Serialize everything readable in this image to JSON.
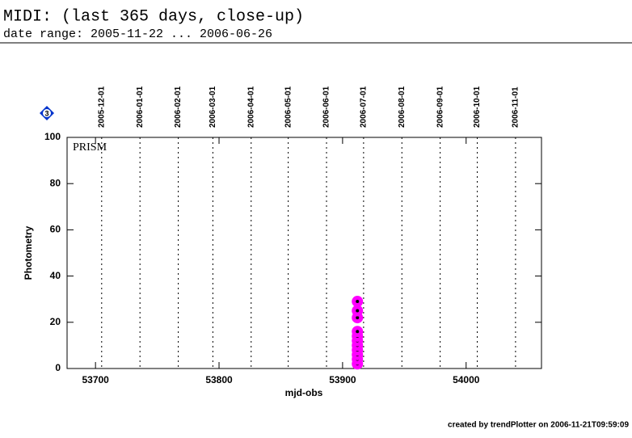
{
  "chart_data": {
    "type": "scatter",
    "title": "MIDI: (last 365 days, close-up)",
    "subtitle": "date range: 2005-11-22 ... 2006-06-26",
    "badge": "3",
    "xlabel": "mjd-obs",
    "ylabel": "Photometry",
    "footer": "created by trendPlotter on 2006-11-21T09:59:09",
    "xlim": [
      53677,
      54061
    ],
    "ylim": [
      0,
      100
    ],
    "xticks": [
      53700,
      53800,
      53900,
      54000
    ],
    "yticks": [
      0,
      20,
      40,
      60,
      80,
      100
    ],
    "date_lines": [
      {
        "value": 53705,
        "label": "2005-12-01"
      },
      {
        "value": 53736,
        "label": "2006-01-01"
      },
      {
        "value": 53767,
        "label": "2006-02-01"
      },
      {
        "value": 53795,
        "label": "2006-03-01"
      },
      {
        "value": 53826,
        "label": "2006-04-01"
      },
      {
        "value": 53856,
        "label": "2006-05-01"
      },
      {
        "value": 53887,
        "label": "2006-06-01"
      },
      {
        "value": 53917,
        "label": "2006-07-01"
      },
      {
        "value": 53948,
        "label": "2006-08-01"
      },
      {
        "value": 53979,
        "label": "2006-09-01"
      },
      {
        "value": 54009,
        "label": "2006-10-01"
      },
      {
        "value": 54040,
        "label": "2006-11-01"
      }
    ],
    "series": [
      {
        "name": "PRISM",
        "color": "#ff00ff",
        "x": [
          53912,
          53912,
          53912,
          53912,
          53912,
          53912,
          53912,
          53912,
          53912,
          53912,
          53912
        ],
        "values": [
          2,
          4,
          6,
          8,
          10,
          12,
          14,
          16,
          22,
          25,
          29
        ]
      }
    ]
  }
}
